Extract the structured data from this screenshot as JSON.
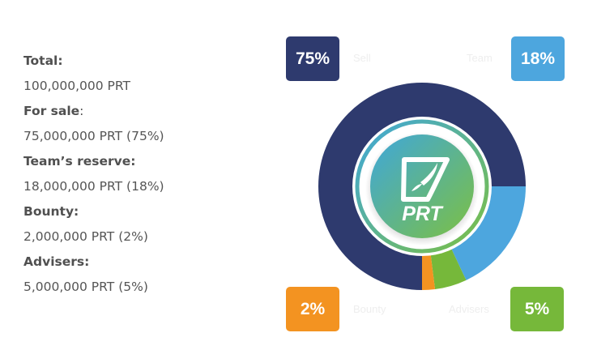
{
  "info": [
    {
      "label": "Total:",
      "value": "100,000,000 PRT"
    },
    {
      "label": "For sale",
      "colon": ":",
      "value": "75,000,000 PRT (75%)"
    },
    {
      "label": "Team’s reserve:",
      "value": "18,000,000 PRT (18%)"
    },
    {
      "label": "Bounty:",
      "value": "2,000,000 PRT (2%)"
    },
    {
      "label": "Advisers:",
      "value": "5,000,000 PRT (5%)"
    }
  ],
  "logo_text": "PRT",
  "chart_data": {
    "type": "pie",
    "donut": true,
    "categories": [
      "Sell",
      "Team",
      "Advisers",
      "Bounty"
    ],
    "values": [
      75,
      18,
      5,
      2
    ],
    "value_labels": [
      "75%",
      "18%",
      "5%",
      "2%"
    ],
    "colors": [
      "#2e3a6e",
      "#4da6de",
      "#76b83a",
      "#f39321"
    ],
    "legend": "corners"
  }
}
